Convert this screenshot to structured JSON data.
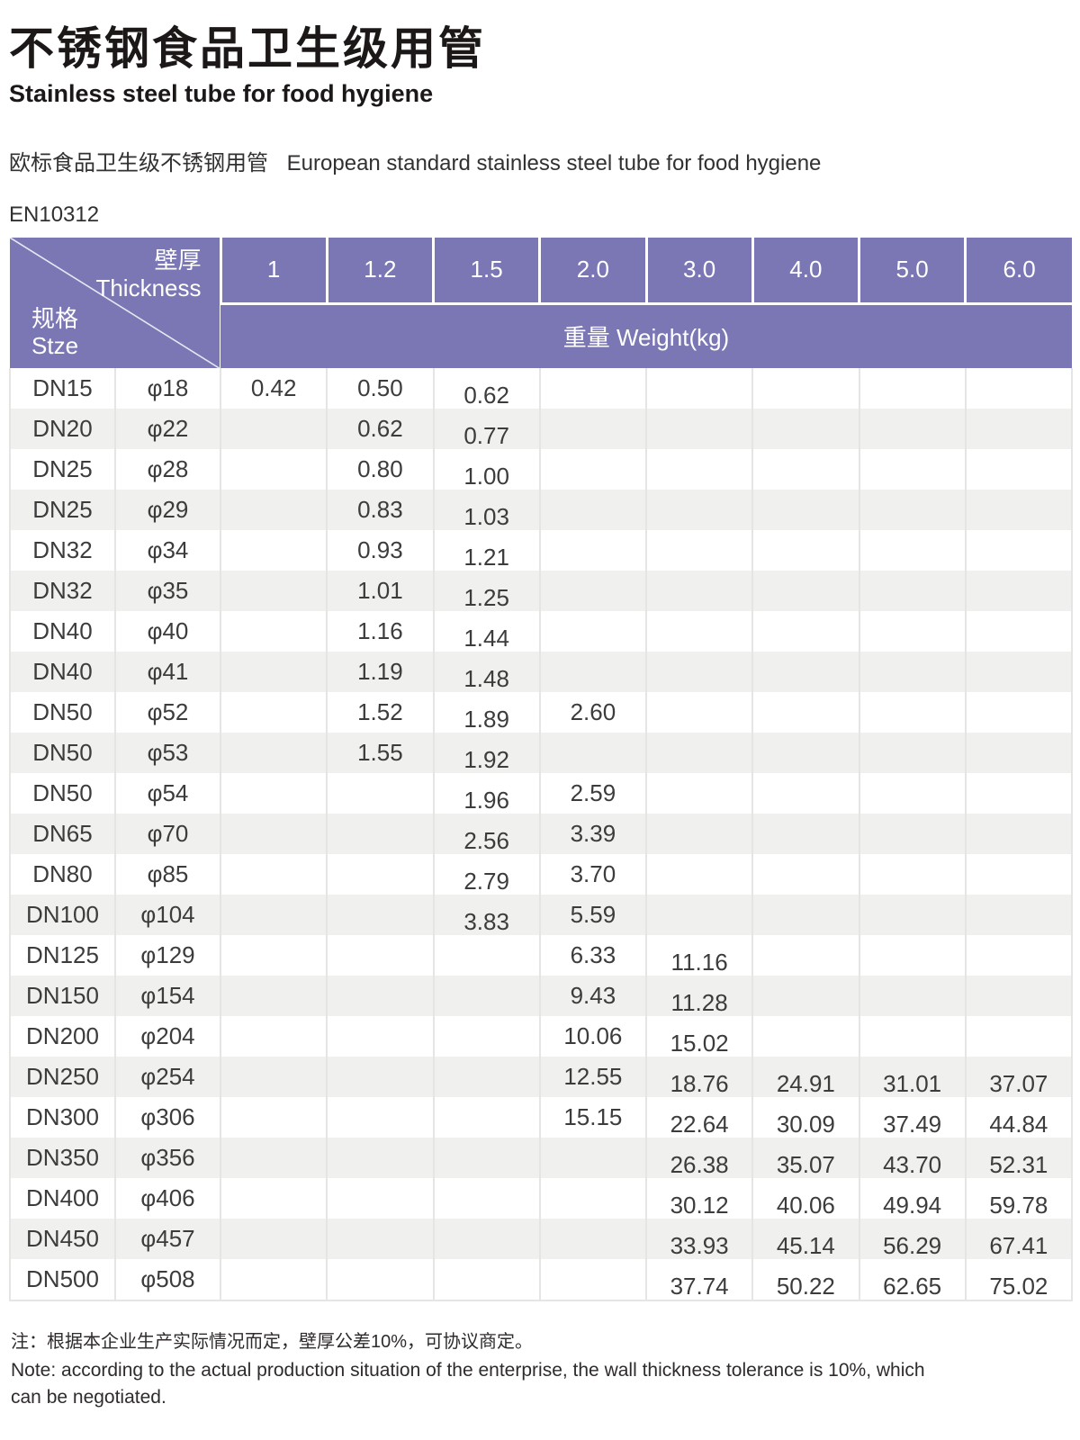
{
  "page": {
    "title_zh": "不锈钢食品卫生级用管",
    "title_en": "Stainless steel tube for food hygiene",
    "standard_line_zh": "欧标食品卫生级不锈钢用管",
    "standard_line_en": "European standard stainless steel tube for food hygiene",
    "standard_code": "EN10312"
  },
  "table": {
    "corner": {
      "thickness_zh": "壁厚",
      "thickness_en": "Thickness",
      "size_zh": "规格",
      "size_en": "Stze"
    },
    "thickness_columns": [
      "1",
      "1.2",
      "1.5",
      "2.0",
      "3.0",
      "4.0",
      "5.0",
      "6.0"
    ],
    "weight_header_label": "重量 Weight(kg)",
    "rows": [
      {
        "size": "DN15",
        "diameter": "φ18",
        "weights": [
          "0.42",
          "0.50",
          "0.62",
          "",
          "",
          "",
          "",
          ""
        ]
      },
      {
        "size": "DN20",
        "diameter": "φ22",
        "weights": [
          "",
          "0.62",
          "0.77",
          "",
          "",
          "",
          "",
          ""
        ]
      },
      {
        "size": "DN25",
        "diameter": "φ28",
        "weights": [
          "",
          "0.80",
          "1.00",
          "",
          "",
          "",
          "",
          ""
        ]
      },
      {
        "size": "DN25",
        "diameter": "φ29",
        "weights": [
          "",
          "0.83",
          "1.03",
          "",
          "",
          "",
          "",
          ""
        ]
      },
      {
        "size": "DN32",
        "diameter": "φ34",
        "weights": [
          "",
          "0.93",
          "1.21",
          "",
          "",
          "",
          "",
          ""
        ]
      },
      {
        "size": "DN32",
        "diameter": "φ35",
        "weights": [
          "",
          "1.01",
          "1.25",
          "",
          "",
          "",
          "",
          ""
        ]
      },
      {
        "size": "DN40",
        "diameter": "φ40",
        "weights": [
          "",
          "1.16",
          "1.44",
          "",
          "",
          "",
          "",
          ""
        ]
      },
      {
        "size": "DN40",
        "diameter": "φ41",
        "weights": [
          "",
          "1.19",
          "1.48",
          "",
          "",
          "",
          "",
          ""
        ]
      },
      {
        "size": "DN50",
        "diameter": "φ52",
        "weights": [
          "",
          "1.52",
          "1.89",
          "2.60",
          "",
          "",
          "",
          ""
        ]
      },
      {
        "size": "DN50",
        "diameter": "φ53",
        "weights": [
          "",
          "1.55",
          "1.92",
          "",
          "",
          "",
          "",
          ""
        ]
      },
      {
        "size": "DN50",
        "diameter": "φ54",
        "weights": [
          "",
          "",
          "1.96",
          "2.59",
          "",
          "",
          "",
          ""
        ]
      },
      {
        "size": "DN65",
        "diameter": "φ70",
        "weights": [
          "",
          "",
          "2.56",
          "3.39",
          "",
          "",
          "",
          ""
        ]
      },
      {
        "size": "DN80",
        "diameter": "φ85",
        "weights": [
          "",
          "",
          "2.79",
          "3.70",
          "",
          "",
          "",
          ""
        ]
      },
      {
        "size": "DN100",
        "diameter": "φ104",
        "weights": [
          "",
          "",
          "3.83",
          "5.59",
          "",
          "",
          "",
          ""
        ]
      },
      {
        "size": "DN125",
        "diameter": "φ129",
        "weights": [
          "",
          "",
          "",
          "6.33",
          "11.16",
          "",
          "",
          ""
        ]
      },
      {
        "size": "DN150",
        "diameter": "φ154",
        "weights": [
          "",
          "",
          "",
          "9.43",
          "11.28",
          "",
          "",
          ""
        ]
      },
      {
        "size": "DN200",
        "diameter": "φ204",
        "weights": [
          "",
          "",
          "",
          "10.06",
          "15.02",
          "",
          "",
          ""
        ]
      },
      {
        "size": "DN250",
        "diameter": "φ254",
        "weights": [
          "",
          "",
          "",
          "12.55",
          "18.76",
          "24.91",
          "31.01",
          "37.07"
        ]
      },
      {
        "size": "DN300",
        "diameter": "φ306",
        "weights": [
          "",
          "",
          "",
          "15.15",
          "22.64",
          "30.09",
          "37.49",
          "44.84"
        ]
      },
      {
        "size": "DN350",
        "diameter": "φ356",
        "weights": [
          "",
          "",
          "",
          "",
          "26.38",
          "35.07",
          "43.70",
          "52.31"
        ]
      },
      {
        "size": "DN400",
        "diameter": "φ406",
        "weights": [
          "",
          "",
          "",
          "",
          "30.12",
          "40.06",
          "49.94",
          "59.78"
        ]
      },
      {
        "size": "DN450",
        "diameter": "φ457",
        "weights": [
          "",
          "",
          "",
          "",
          "33.93",
          "45.14",
          "56.29",
          "67.41"
        ]
      },
      {
        "size": "DN500",
        "diameter": "φ508",
        "weights": [
          "",
          "",
          "",
          "",
          "37.74",
          "50.22",
          "62.65",
          "75.02"
        ]
      }
    ]
  },
  "notes": {
    "zh": "注：根据本企业生产实际情况而定，壁厚公差10%，可协议商定。",
    "en": "Note: according to the actual production situation of the enterprise, the wall thickness tolerance is 10%, which can be negotiated."
  },
  "colors": {
    "header_purple": "#7b77b4",
    "row_alt_gray": "#f0f0ee",
    "grid_line": "#e5e5e3",
    "body_text": "#3c3c3c"
  }
}
